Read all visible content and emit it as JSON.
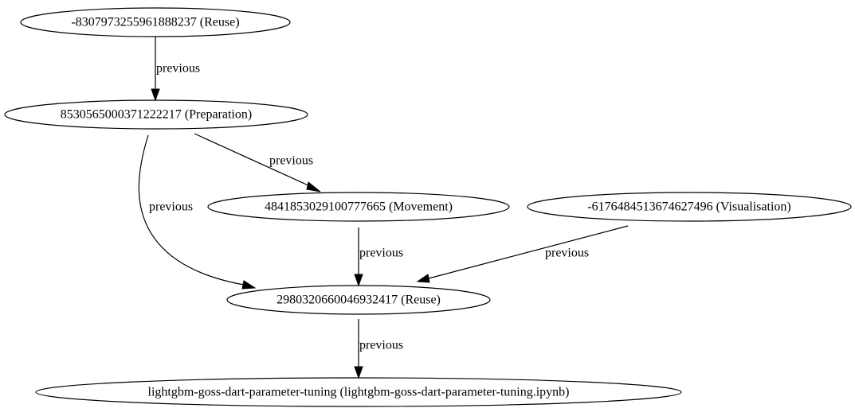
{
  "diagram": {
    "nodes": [
      {
        "id": "n_reuse_top",
        "label": "-8307973255961888237 (Reuse)"
      },
      {
        "id": "n_preparation",
        "label": "8530565000371222217 (Preparation)"
      },
      {
        "id": "n_movement",
        "label": "4841853029100777665 (Movement)"
      },
      {
        "id": "n_visualisation",
        "label": "-6176484513674627496 (Visualisation)"
      },
      {
        "id": "n_reuse_mid",
        "label": "2980320660046932417 (Reuse)"
      },
      {
        "id": "n_notebook",
        "label": "lightgbm-goss-dart-parameter-tuning (lightgbm-goss-dart-parameter-tuning.ipynb)"
      }
    ],
    "edges": [
      {
        "id": "e1",
        "from": "n_reuse_top",
        "to": "n_preparation",
        "label": "previous"
      },
      {
        "id": "e2",
        "from": "n_preparation",
        "to": "n_movement",
        "label": "previous"
      },
      {
        "id": "e3",
        "from": "n_preparation",
        "to": "n_reuse_mid",
        "label": "previous"
      },
      {
        "id": "e4",
        "from": "n_movement",
        "to": "n_reuse_mid",
        "label": "previous"
      },
      {
        "id": "e5",
        "from": "n_visualisation",
        "to": "n_reuse_mid",
        "label": "previous"
      },
      {
        "id": "e6",
        "from": "n_reuse_mid",
        "to": "n_notebook",
        "label": "previous"
      }
    ]
  }
}
